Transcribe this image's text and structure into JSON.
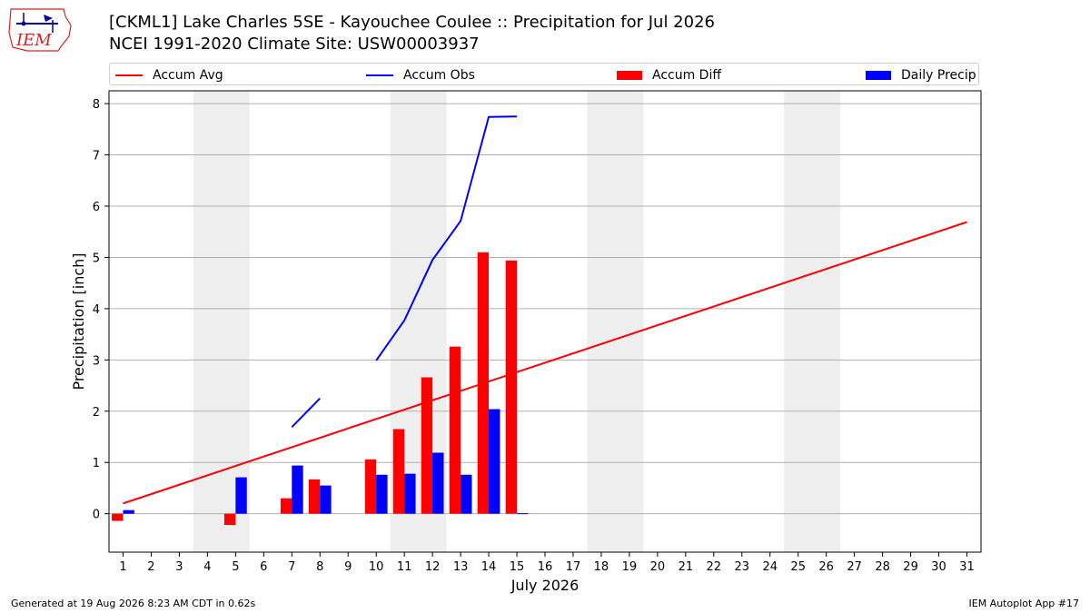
{
  "logo": {
    "text": "IEM"
  },
  "header": {
    "title_line1": "[CKML1] Lake Charles 5SE - Kayouchee Coulee :: Precipitation for Jul 2026",
    "title_line2": "NCEI 1991-2020 Climate Site: USW00003937"
  },
  "legend": [
    {
      "label": "Accum Avg",
      "color": "#ff0000",
      "kind": "line"
    },
    {
      "label": "Accum Obs",
      "color": "#0000ff",
      "kind": "line"
    },
    {
      "label": "Accum Diff",
      "color": "#ff0000",
      "kind": "box"
    },
    {
      "label": "Daily Precip",
      "color": "#0000ff",
      "kind": "box"
    }
  ],
  "footer": {
    "generated": "Generated at 19 Aug 2026 8:23 AM CDT in 0.62s",
    "app": "IEM Autoplot App #17"
  },
  "chart_data": {
    "type": "bar",
    "xlabel": "July 2026",
    "ylabel": "Precipitation [inch]",
    "xlim": [
      0.5,
      31.5
    ],
    "ylim": [
      -0.75,
      8.25
    ],
    "x_ticks": [
      1,
      2,
      3,
      4,
      5,
      6,
      7,
      8,
      9,
      10,
      11,
      12,
      13,
      14,
      15,
      16,
      17,
      18,
      19,
      20,
      21,
      22,
      23,
      24,
      25,
      26,
      27,
      28,
      29,
      30,
      31
    ],
    "y_ticks": [
      0,
      1,
      2,
      3,
      4,
      5,
      6,
      7,
      8
    ],
    "grid": "horizontal",
    "legend_position": "top",
    "weekend_shading": [
      [
        3.5,
        5.5
      ],
      [
        10.5,
        12.5
      ],
      [
        17.5,
        19.5
      ],
      [
        24.5,
        26.5
      ]
    ],
    "accum_avg": {
      "x": [
        1,
        31
      ],
      "y": [
        0.2,
        5.69
      ]
    },
    "accum_obs_segments": [
      {
        "x": [
          7,
          8
        ],
        "y": [
          1.69,
          2.25
        ]
      },
      {
        "x": [
          10,
          11,
          12,
          13,
          14,
          15
        ],
        "y": [
          2.99,
          3.77,
          4.95,
          5.71,
          7.74,
          7.75
        ]
      }
    ],
    "accum_diff": [
      {
        "day": 1,
        "value": -0.14
      },
      {
        "day": 5,
        "value": -0.22
      },
      {
        "day": 7,
        "value": 0.3
      },
      {
        "day": 8,
        "value": 0.67
      },
      {
        "day": 10,
        "value": 1.06
      },
      {
        "day": 11,
        "value": 1.65
      },
      {
        "day": 12,
        "value": 2.66
      },
      {
        "day": 13,
        "value": 3.26
      },
      {
        "day": 14,
        "value": 5.1
      },
      {
        "day": 15,
        "value": 4.94
      }
    ],
    "daily_precip": [
      {
        "day": 1,
        "value": 0.07
      },
      {
        "day": 5,
        "value": 0.71
      },
      {
        "day": 7,
        "value": 0.94
      },
      {
        "day": 8,
        "value": 0.55
      },
      {
        "day": 10,
        "value": 0.76
      },
      {
        "day": 11,
        "value": 0.78
      },
      {
        "day": 12,
        "value": 1.19
      },
      {
        "day": 13,
        "value": 0.76
      },
      {
        "day": 14,
        "value": 2.04
      },
      {
        "day": 15,
        "value": 0.01
      }
    ]
  }
}
